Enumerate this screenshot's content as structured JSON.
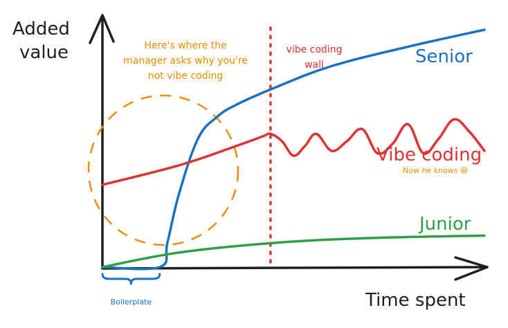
{
  "chart_data": {
    "type": "line",
    "title": "",
    "xlabel": "Time spent",
    "ylabel_lines": [
      "Added",
      "value"
    ],
    "xlim": [
      0,
      100
    ],
    "ylim": [
      0,
      100
    ],
    "grid": false,
    "legend": "inline labels at line ends",
    "series": [
      {
        "name": "Senior",
        "color": "#1971c2",
        "x": [
          0,
          15,
          17,
          20,
          25,
          30,
          35,
          45,
          60,
          80,
          100
        ],
        "y": [
          0,
          0,
          10,
          30,
          53,
          62,
          67,
          74,
          83,
          91,
          98
        ]
      },
      {
        "name": "Vibe coding",
        "color": "#e03131",
        "x": [
          0,
          20,
          35,
          42,
          44,
          47,
          50,
          53,
          56,
          60,
          64,
          68,
          72,
          76,
          80,
          84,
          88,
          92,
          96,
          100
        ],
        "y": [
          34,
          42,
          50,
          54,
          55,
          52,
          46,
          50,
          55,
          48,
          52,
          57,
          47,
          51,
          59,
          47,
          53,
          61,
          56,
          48
        ]
      },
      {
        "name": "Junior",
        "color": "#2f9e44",
        "x": [
          0,
          20,
          45,
          70,
          100
        ],
        "y": [
          0,
          6,
          10,
          12,
          13
        ]
      }
    ],
    "annotations": {
      "manager": {
        "lines": [
          "Here's where the",
          "manager asks why you're",
          "not vibe coding"
        ],
        "color": "#f08c00"
      },
      "wall": {
        "lines": [
          "vibe coding",
          "wall"
        ],
        "color": "#e03131",
        "x": 44
      },
      "now_he_knows": {
        "text": "Now he knows 😆",
        "color": "#f08c00"
      },
      "boilerplate": {
        "text": "Boilerplate",
        "color": "#1971c2",
        "x_range": [
          0,
          15
        ]
      }
    }
  }
}
